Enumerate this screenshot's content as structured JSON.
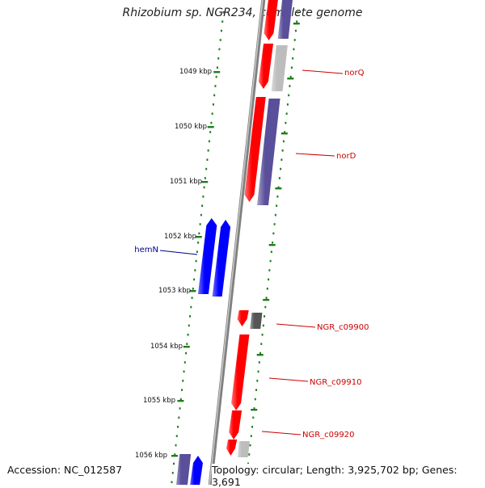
{
  "title": "Rhizobium sp. NGR234, complete genome",
  "accession": "Accession: NC_012587",
  "topology": "Topology: circular; Length: 3,925,702 bp; Genes: 3,691",
  "colors": {
    "backbone": "#808080",
    "forward_gene": "#ff0000",
    "reverse_gene": "#5a4f9a",
    "blue_gene": "#0000ff",
    "grey_gene": "#bdbdbd",
    "dark_gene": "#555555",
    "dots": "#1e7d1e",
    "red_label": "#cc0000",
    "blue_label": "#00008b"
  },
  "ticks": [
    {
      "label": "1049 kbp"
    },
    {
      "label": "1050 kbp"
    },
    {
      "label": "1051 kbp"
    },
    {
      "label": "1052 kbp"
    },
    {
      "label": "1053 kbp"
    },
    {
      "label": "1054 kbp"
    },
    {
      "label": "1055 kbp"
    },
    {
      "label": "1056 kbp"
    }
  ],
  "gene_labels": [
    {
      "text": "norQ",
      "color": "red"
    },
    {
      "text": "norD",
      "color": "red"
    },
    {
      "text": "hemN",
      "color": "blue"
    },
    {
      "text": "NGR_c09900",
      "color": "red"
    },
    {
      "text": "NGR_c09910",
      "color": "red"
    },
    {
      "text": "NGR_c09920",
      "color": "red"
    }
  ]
}
